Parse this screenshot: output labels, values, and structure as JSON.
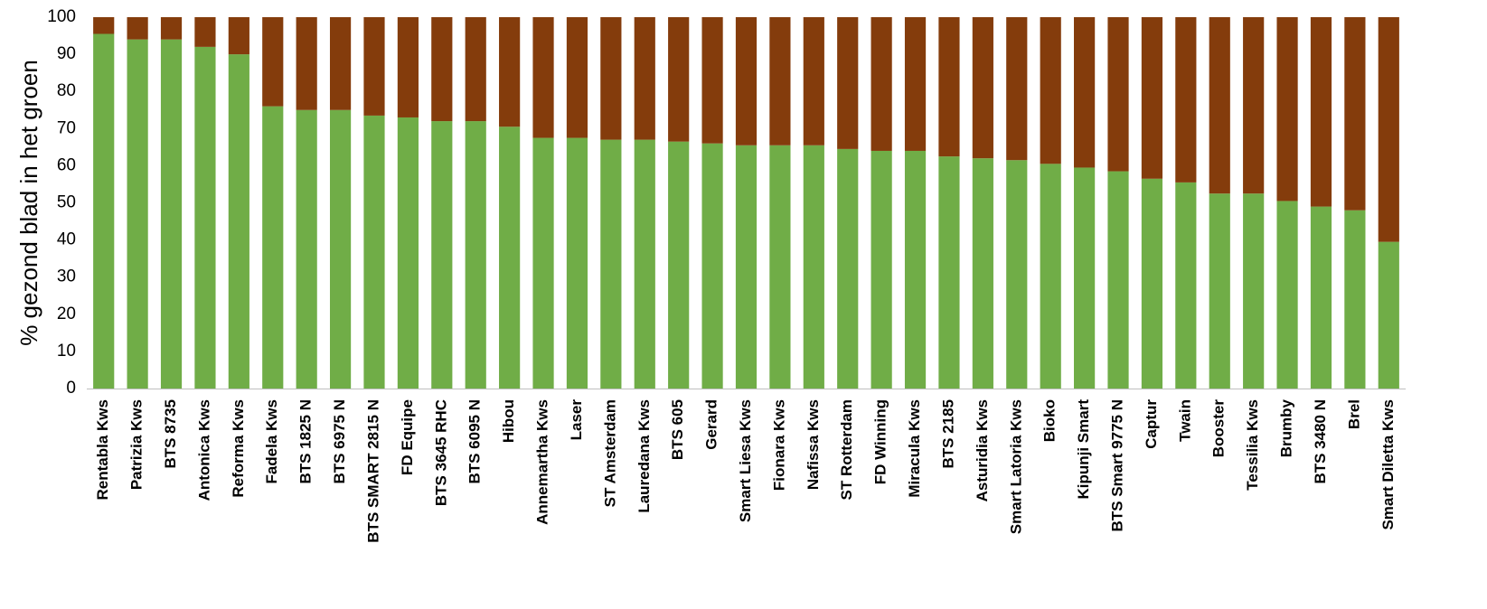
{
  "chart_data": {
    "type": "bar",
    "stacked": true,
    "title": "",
    "xlabel": "",
    "ylabel": "% gezond blad in het groen",
    "ylim": [
      0,
      100
    ],
    "yticks": [
      0,
      10,
      20,
      30,
      40,
      50,
      60,
      70,
      80,
      90,
      100
    ],
    "grid": false,
    "legend": "none",
    "categories": [
      "Rentabla Kws",
      "Patrizia Kws",
      "BTS 8735",
      "Antonica Kws",
      "Reforma Kws",
      "Fadela Kws",
      "BTS 1825 N",
      "BTS 6975 N",
      "BTS SMART 2815 N",
      "FD Equipe",
      "BTS 3645 RHC",
      "BTS 6095 N",
      "Hibou",
      "Annemartha Kws",
      "Laser",
      "ST Amsterdam",
      "Lauredana Kws",
      "BTS 605",
      "Gerard",
      "Smart Liesa Kws",
      "Fionara Kws",
      "Nafissa Kws",
      "ST Rotterdam",
      "FD Winning",
      "Miracula Kws",
      "BTS 2185",
      "Asturidia Kws",
      "Smart Latoria Kws",
      "Bioko",
      "Kipunji Smart",
      "BTS Smart 9775 N",
      "Captur",
      "Twain",
      "Booster",
      "Tessilia Kws",
      "Brumby",
      "BTS 3480 N",
      "Brel",
      "Smart Diletta Kws"
    ],
    "series": [
      {
        "color": "#70AD47",
        "values": [
          95.5,
          94,
          94,
          92,
          90,
          76,
          75,
          75,
          73.5,
          73,
          72,
          72,
          70.5,
          67.5,
          67.5,
          67,
          67,
          66.5,
          66,
          65.5,
          65.5,
          65.5,
          64.5,
          64,
          64,
          62.5,
          62,
          61.5,
          60.5,
          59.5,
          58.5,
          56.5,
          55.5,
          52.5,
          52.5,
          50.5,
          49,
          48,
          39.5
        ]
      },
      {
        "color": "#843C0C",
        "values": [
          4.5,
          6,
          6,
          8,
          10,
          24,
          25,
          25,
          26.5,
          27,
          28,
          28,
          29.5,
          32.5,
          32.5,
          33,
          33,
          33.5,
          34,
          34.5,
          34.5,
          34.5,
          35.5,
          36,
          36,
          37.5,
          38,
          38.5,
          39.5,
          40.5,
          41.5,
          43.5,
          44.5,
          47.5,
          47.5,
          49.5,
          51,
          52,
          60.5
        ]
      }
    ]
  }
}
